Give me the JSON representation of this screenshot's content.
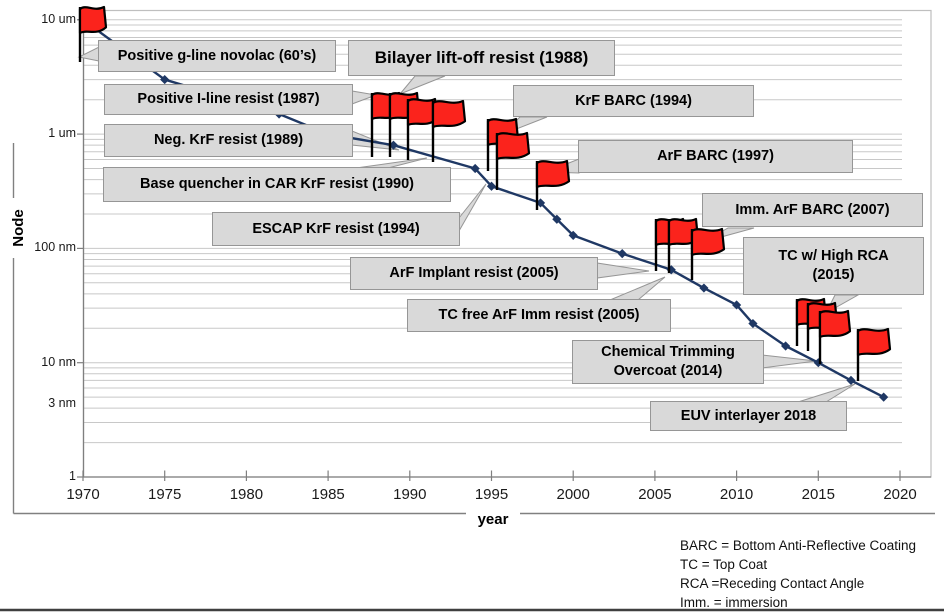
{
  "figure": {
    "legend_notes": [
      "BARC = Bottom Anti-Reflective Coating",
      "TC = Top Coat",
      "RCA =Receding Contact Angle",
      "Imm. = immersion"
    ]
  },
  "chart_data": {
    "type": "line",
    "xlabel": "year",
    "ylabel": "Node",
    "y_scale": "log",
    "grid": true,
    "xlim": [
      1970,
      2020
    ],
    "ylim_nm": [
      1,
      12000
    ],
    "x_ticks": [
      1970,
      1975,
      1980,
      1985,
      1990,
      1995,
      2000,
      2005,
      2010,
      2015,
      2020
    ],
    "y_ticks": [
      {
        "label": "10 um",
        "nm": 10000
      },
      {
        "label": "1 um",
        "nm": 1000
      },
      {
        "label": "100 nm",
        "nm": 100
      },
      {
        "label": "10 nm",
        "nm": 10
      },
      {
        "label": "3 nm",
        "nm": 3
      },
      {
        "label": "1",
        "nm": 1
      }
    ],
    "line_color": "#1F3864",
    "flag_color": "#FB231C",
    "box_fill": "#D9D9D9",
    "box_border": "#969696",
    "grid_color": "#C8C8C8",
    "series": [
      {
        "name": "Node",
        "points": [
          [
            1970,
            10000
          ],
          [
            1975,
            3000
          ],
          [
            1982,
            1500
          ],
          [
            1985,
            1000
          ],
          [
            1989,
            800
          ],
          [
            1994,
            500
          ],
          [
            1995,
            350
          ],
          [
            1998,
            250
          ],
          [
            1999,
            180
          ],
          [
            2000,
            130
          ],
          [
            2003,
            90
          ],
          [
            2006,
            65
          ],
          [
            2008,
            45
          ],
          [
            2010,
            32
          ],
          [
            2011,
            22
          ],
          [
            2013,
            14
          ],
          [
            2015,
            10
          ],
          [
            2017,
            7
          ],
          [
            2019,
            5
          ]
        ]
      }
    ],
    "milestones": [
      {
        "label": "Positive g-line novolac (60’s)",
        "year": 1970
      },
      {
        "label": "Bilayer lift-off resist (1988)",
        "year": 1988
      },
      {
        "label": "Positive I-line resist (1987)",
        "year": 1987
      },
      {
        "label": "KrF BARC (1994)",
        "year": 1994
      },
      {
        "label": "Neg. KrF resist (1989)",
        "year": 1989
      },
      {
        "label": "ArF BARC (1997)",
        "year": 1997
      },
      {
        "label": "Base quencher in CAR KrF resist (1990)",
        "year": 1990
      },
      {
        "label": "Imm. ArF BARC (2007)",
        "year": 2007
      },
      {
        "label": "ESCAP KrF resist (1994)",
        "year": 1994
      },
      {
        "label": "TC w/ High RCA\n(2015)",
        "year": 2015
      },
      {
        "label": "ArF Implant resist (2005)",
        "year": 2005
      },
      {
        "label": "TC free ArF Imm resist (2005)",
        "year": 2005
      },
      {
        "label": "Chemical Trimming\nOvercoat (2014)",
        "year": 2014
      },
      {
        "label": "EUV interlayer 2018",
        "year": 2018
      }
    ]
  }
}
